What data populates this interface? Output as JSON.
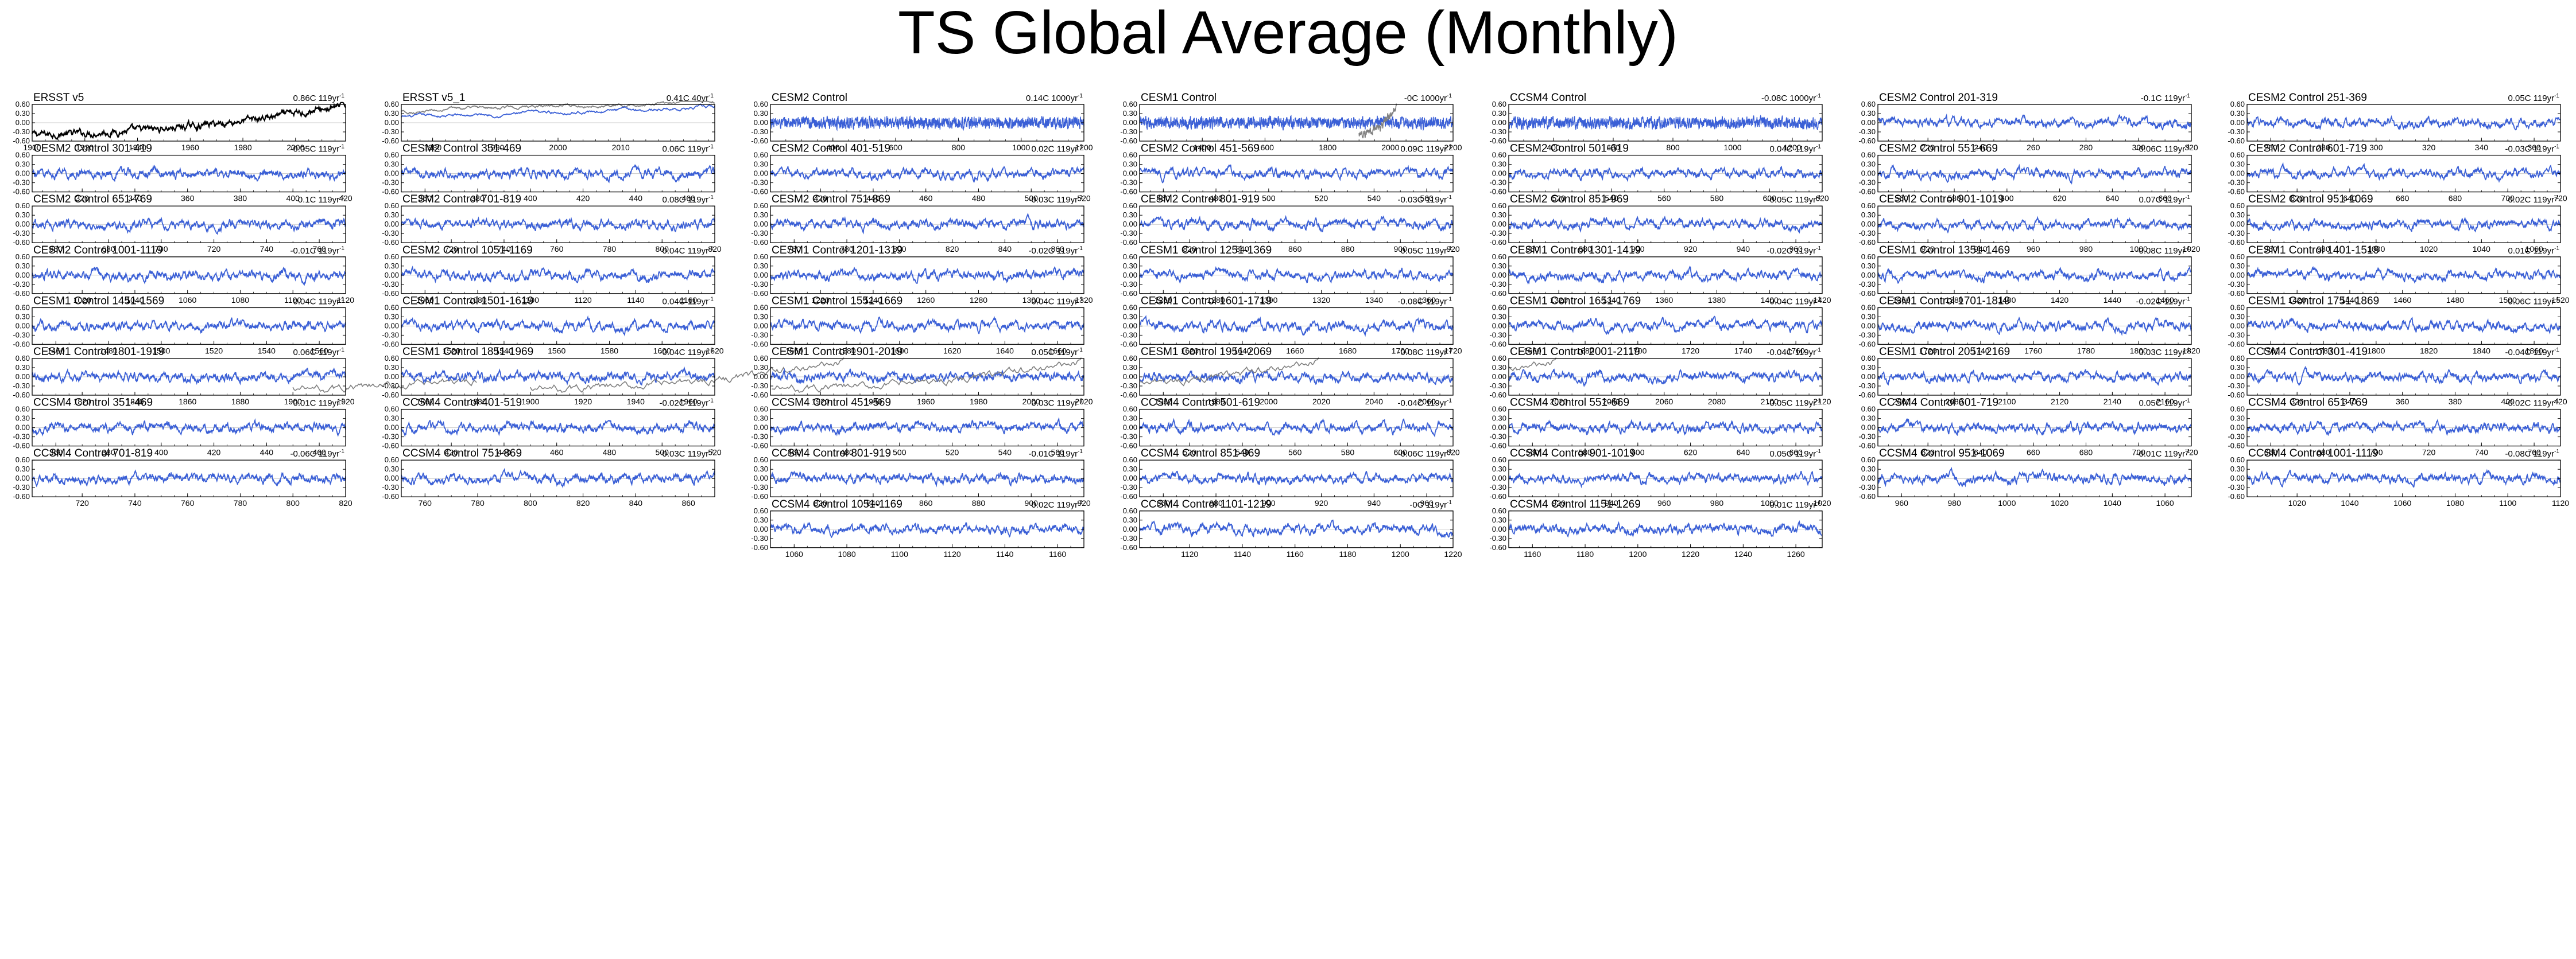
{
  "page": {
    "title": "TS Global Average (Monthly)"
  },
  "colors": {
    "model": "#3a5fd6",
    "obs_black": "#000000",
    "obs_gray": "#808080",
    "axis": "#000000"
  },
  "y_axis": {
    "ylim": [
      -0.6,
      0.6
    ],
    "tick_labels": [
      "0.60",
      "0.30",
      "0.00",
      "-0.30",
      "-0.60"
    ],
    "tick_values": [
      0.6,
      0.3,
      0.0,
      -0.3,
      -0.6
    ]
  },
  "chart_data": [
    {
      "type": "line",
      "title": "ERSST v5",
      "trend": "0.86C 119yr",
      "trend_unit": "-1",
      "xlim": [
        1900,
        2019
      ],
      "xticks": [
        1900,
        1920,
        1940,
        1960,
        1980,
        2000
      ],
      "style": "obs_black"
    },
    {
      "type": "line",
      "title": "ERSST v5_1",
      "trend": "0.41C 40yr",
      "trend_unit": "-1",
      "xlim": [
        1975,
        2025
      ],
      "xticks": [
        1980,
        1990,
        2000,
        2010
      ],
      "style": "obs_dual"
    },
    {
      "type": "line",
      "title": "CESM2 Control",
      "trend": "0.14C 1000yr",
      "trend_unit": "-1",
      "xlim": [
        201,
        1200
      ],
      "xticks": [
        400,
        600,
        800,
        1000,
        1200
      ],
      "style": "model_dense"
    },
    {
      "type": "line",
      "title": "CESM1 Control",
      "trend": "-0C 1000yr",
      "trend_unit": "-1",
      "xlim": [
        1200,
        2200
      ],
      "xticks": [
        1400,
        1600,
        1800,
        2000,
        2200
      ],
      "style": "model_dense_overlay",
      "overlay_from": 1900,
      "overlay_to": 2019
    },
    {
      "type": "line",
      "title": "CCSM4 Control",
      "trend": "-0.08C 1000yr",
      "trend_unit": "-1",
      "xlim": [
        250,
        1300
      ],
      "xticks": [
        400,
        600,
        800,
        1000,
        1200
      ],
      "style": "model_dense"
    },
    {
      "type": "line",
      "title": "CESM2 Control 201-319",
      "trend": "-0.1C 119yr",
      "trend_unit": "-1",
      "xlim": [
        201,
        320
      ],
      "xticks": [
        220,
        240,
        260,
        280,
        300,
        320
      ],
      "style": "model"
    },
    {
      "type": "line",
      "title": "CESM2 Control 251-369",
      "trend": "0.05C 119yr",
      "trend_unit": "-1",
      "xlim": [
        251,
        370
      ],
      "xticks": [
        260,
        280,
        300,
        320,
        340,
        360
      ],
      "style": "model"
    },
    {
      "type": "line",
      "title": "CESM2 Control 301-419",
      "trend": "-0.05C 119yr",
      "trend_unit": "-1",
      "xlim": [
        301,
        420
      ],
      "xticks": [
        320,
        340,
        360,
        380,
        400,
        420
      ],
      "style": "model"
    },
    {
      "type": "line",
      "title": "CESM2 Control 351-469",
      "trend": "0.06C 119yr",
      "trend_unit": "-1",
      "xlim": [
        351,
        470
      ],
      "xticks": [
        360,
        380,
        400,
        420,
        440,
        460
      ],
      "style": "model"
    },
    {
      "type": "line",
      "title": "CESM2 Control 401-519",
      "trend": "0.02C 119yr",
      "trend_unit": "-1",
      "xlim": [
        401,
        520
      ],
      "xticks": [
        420,
        440,
        460,
        480,
        500,
        520
      ],
      "style": "model"
    },
    {
      "type": "line",
      "title": "CESM2 Control 451-569",
      "trend": "0.09C 119yr",
      "trend_unit": "-1",
      "xlim": [
        451,
        570
      ],
      "xticks": [
        460,
        480,
        500,
        520,
        540,
        560
      ],
      "style": "model"
    },
    {
      "type": "line",
      "title": "CESM2 Control 501-619",
      "trend": "0.04C 119yr",
      "trend_unit": "-1",
      "xlim": [
        501,
        620
      ],
      "xticks": [
        520,
        540,
        560,
        580,
        600,
        620
      ],
      "style": "model"
    },
    {
      "type": "line",
      "title": "CESM2 Control 551-669",
      "trend": "-0.06C 119yr",
      "trend_unit": "-1",
      "xlim": [
        551,
        670
      ],
      "xticks": [
        560,
        580,
        600,
        620,
        640,
        660
      ],
      "style": "model"
    },
    {
      "type": "line",
      "title": "CESM2 Control 601-719",
      "trend": "-0.03C 119yr",
      "trend_unit": "-1",
      "xlim": [
        601,
        720
      ],
      "xticks": [
        620,
        640,
        660,
        680,
        700,
        720
      ],
      "style": "model"
    },
    {
      "type": "line",
      "title": "CESM2 Control 651-769",
      "trend": "0.1C 119yr",
      "trend_unit": "-1",
      "xlim": [
        651,
        770
      ],
      "xticks": [
        660,
        680,
        700,
        720,
        740,
        760
      ],
      "style": "model"
    },
    {
      "type": "line",
      "title": "CESM2 Control 701-819",
      "trend": "0.08C 119yr",
      "trend_unit": "-1",
      "xlim": [
        701,
        820
      ],
      "xticks": [
        720,
        740,
        760,
        780,
        800,
        820
      ],
      "style": "model"
    },
    {
      "type": "line",
      "title": "CESM2 Control 751-869",
      "trend": "-0.03C 119yr",
      "trend_unit": "-1",
      "xlim": [
        751,
        870
      ],
      "xticks": [
        760,
        780,
        800,
        820,
        840,
        860
      ],
      "style": "model"
    },
    {
      "type": "line",
      "title": "CESM2 Control 801-919",
      "trend": "-0.03C 119yr",
      "trend_unit": "-1",
      "xlim": [
        801,
        920
      ],
      "xticks": [
        820,
        840,
        860,
        880,
        900,
        920
      ],
      "style": "model"
    },
    {
      "type": "line",
      "title": "CESM2 Control 851-969",
      "trend": "-0.05C 119yr",
      "trend_unit": "-1",
      "xlim": [
        851,
        970
      ],
      "xticks": [
        860,
        880,
        900,
        920,
        940,
        960
      ],
      "style": "model"
    },
    {
      "type": "line",
      "title": "CESM2 Control 901-1019",
      "trend": "0.07C 119yr",
      "trend_unit": "-1",
      "xlim": [
        901,
        1020
      ],
      "xticks": [
        920,
        940,
        960,
        980,
        1000,
        1020
      ],
      "style": "model"
    },
    {
      "type": "line",
      "title": "CESM2 Control 951-1069",
      "trend": "0.02C 119yr",
      "trend_unit": "-1",
      "xlim": [
        951,
        1070
      ],
      "xticks": [
        960,
        980,
        1000,
        1020,
        1040,
        1060
      ],
      "style": "model"
    },
    {
      "type": "line",
      "title": "CESM2 Control 1001-1119",
      "trend": "-0.01C 119yr",
      "trend_unit": "-1",
      "xlim": [
        1001,
        1120
      ],
      "xticks": [
        1020,
        1040,
        1060,
        1080,
        1100,
        1120
      ],
      "style": "model"
    },
    {
      "type": "line",
      "title": "CESM2 Control 1051-1169",
      "trend": "0.04C 119yr",
      "trend_unit": "-1",
      "xlim": [
        1051,
        1170
      ],
      "xticks": [
        1060,
        1080,
        1100,
        1120,
        1140,
        1160
      ],
      "style": "model"
    },
    {
      "type": "line",
      "title": "CESM1 Control 1201-1319",
      "trend": "-0.02C 119yr",
      "trend_unit": "-1",
      "xlim": [
        1201,
        1320
      ],
      "xticks": [
        1220,
        1240,
        1260,
        1280,
        1300,
        1320
      ],
      "style": "model"
    },
    {
      "type": "line",
      "title": "CESM1 Control 1251-1369",
      "trend": "0.05C 119yr",
      "trend_unit": "-1",
      "xlim": [
        1251,
        1370
      ],
      "xticks": [
        1260,
        1280,
        1300,
        1320,
        1340,
        1360
      ],
      "style": "model"
    },
    {
      "type": "line",
      "title": "CESM1 Control 1301-1419",
      "trend": "-0.02C 119yr",
      "trend_unit": "-1",
      "xlim": [
        1301,
        1420
      ],
      "xticks": [
        1320,
        1340,
        1360,
        1380,
        1400,
        1420
      ],
      "style": "model"
    },
    {
      "type": "line",
      "title": "CESM1 Control 1351-1469",
      "trend": "-0.08C 119yr",
      "trend_unit": "-1",
      "xlim": [
        1351,
        1470
      ],
      "xticks": [
        1360,
        1380,
        1400,
        1420,
        1440,
        1460
      ],
      "style": "model"
    },
    {
      "type": "line",
      "title": "CESM1 Control 1401-1519",
      "trend": "0.01C 119yr",
      "trend_unit": "-1",
      "xlim": [
        1401,
        1520
      ],
      "xticks": [
        1420,
        1440,
        1460,
        1480,
        1500,
        1520
      ],
      "style": "model"
    },
    {
      "type": "line",
      "title": "CESM1 Control 1451-1569",
      "trend": "0.04C 119yr",
      "trend_unit": "-1",
      "xlim": [
        1451,
        1570
      ],
      "xticks": [
        1460,
        1480,
        1500,
        1520,
        1540,
        1560
      ],
      "style": "model"
    },
    {
      "type": "line",
      "title": "CESM1 Control 1501-1619",
      "trend": "0.04C 119yr",
      "trend_unit": "-1",
      "xlim": [
        1501,
        1620
      ],
      "xticks": [
        1520,
        1540,
        1560,
        1580,
        1600,
        1620
      ],
      "style": "model"
    },
    {
      "type": "line",
      "title": "CESM1 Control 1551-1669",
      "trend": "0.04C 119yr",
      "trend_unit": "-1",
      "xlim": [
        1551,
        1670
      ],
      "xticks": [
        1560,
        1580,
        1600,
        1620,
        1640,
        1660
      ],
      "style": "model"
    },
    {
      "type": "line",
      "title": "CESM1 Control 1601-1719",
      "trend": "-0.08C 119yr",
      "trend_unit": "-1",
      "xlim": [
        1601,
        1720
      ],
      "xticks": [
        1620,
        1640,
        1660,
        1680,
        1700,
        1720
      ],
      "style": "model"
    },
    {
      "type": "line",
      "title": "CESM1 Control 1651-1769",
      "trend": "-0.04C 119yr",
      "trend_unit": "-1",
      "xlim": [
        1651,
        1770
      ],
      "xticks": [
        1660,
        1680,
        1700,
        1720,
        1740,
        1760
      ],
      "style": "model"
    },
    {
      "type": "line",
      "title": "CESM1 Control 1701-1819",
      "trend": "-0.02C 119yr",
      "trend_unit": "-1",
      "xlim": [
        1701,
        1820
      ],
      "xticks": [
        1720,
        1740,
        1760,
        1780,
        1800,
        1820
      ],
      "style": "model"
    },
    {
      "type": "line",
      "title": "CESM1 Control 1751-1869",
      "trend": "0.06C 119yr",
      "trend_unit": "-1",
      "xlim": [
        1751,
        1870
      ],
      "xticks": [
        1760,
        1780,
        1800,
        1820,
        1840,
        1860
      ],
      "style": "model"
    },
    {
      "type": "line",
      "title": "CESM1 Control 1801-1919",
      "trend": "0.06C 119yr",
      "trend_unit": "-1",
      "xlim": [
        1801,
        1920
      ],
      "xticks": [
        1820,
        1840,
        1860,
        1880,
        1900,
        1920
      ],
      "style": "model_overlay",
      "overlay_from": 1900,
      "overlay_to": 2019
    },
    {
      "type": "line",
      "title": "CESM1 Control 1851-1969",
      "trend": "-0.04C 119yr",
      "trend_unit": "-1",
      "xlim": [
        1851,
        1970
      ],
      "xticks": [
        1860,
        1880,
        1900,
        1920,
        1940,
        1960
      ],
      "style": "model_overlay",
      "overlay_from": 1900,
      "overlay_to": 2019
    },
    {
      "type": "line",
      "title": "CESM1 Control 1901-2019",
      "trend": "0.05C 119yr",
      "trend_unit": "-1",
      "xlim": [
        1901,
        2020
      ],
      "xticks": [
        1920,
        1940,
        1960,
        1980,
        2000,
        2020
      ],
      "style": "model_overlay",
      "overlay_from": 1900,
      "overlay_to": 2019
    },
    {
      "type": "line",
      "title": "CESM1 Control 1951-2069",
      "trend": "-0.08C 119yr",
      "trend_unit": "-1",
      "xlim": [
        1951,
        2070
      ],
      "xticks": [
        1960,
        1980,
        2000,
        2020,
        2040,
        2060
      ],
      "style": "model_overlay",
      "overlay_from": 1900,
      "overlay_to": 2019
    },
    {
      "type": "line",
      "title": "CESM1 Control 2001-2119",
      "trend": "-0.04C 119yr",
      "trend_unit": "-1",
      "xlim": [
        2001,
        2120
      ],
      "xticks": [
        2020,
        2040,
        2060,
        2080,
        2100,
        2120
      ],
      "style": "model_overlay",
      "overlay_from": 1900,
      "overlay_to": 2019
    },
    {
      "type": "line",
      "title": "CESM1 Control 2051-2169",
      "trend": "0.03C 119yr",
      "trend_unit": "-1",
      "xlim": [
        2051,
        2170
      ],
      "xticks": [
        2060,
        2080,
        2100,
        2120,
        2140,
        2160
      ],
      "style": "model"
    },
    {
      "type": "line",
      "title": "CCSM4 Control 301-419",
      "trend": "-0.04C 119yr",
      "trend_unit": "-1",
      "xlim": [
        301,
        420
      ],
      "xticks": [
        320,
        340,
        360,
        380,
        400,
        420
      ],
      "style": "model"
    },
    {
      "type": "line",
      "title": "CCSM4 Control 351-469",
      "trend": "0.01C 119yr",
      "trend_unit": "-1",
      "xlim": [
        351,
        470
      ],
      "xticks": [
        360,
        380,
        400,
        420,
        440,
        460
      ],
      "style": "model"
    },
    {
      "type": "line",
      "title": "CCSM4 Control 401-519",
      "trend": "-0.02C 119yr",
      "trend_unit": "-1",
      "xlim": [
        401,
        520
      ],
      "xticks": [
        420,
        440,
        460,
        480,
        500,
        520
      ],
      "style": "model"
    },
    {
      "type": "line",
      "title": "CCSM4 Control 451-569",
      "trend": "0.03C 119yr",
      "trend_unit": "-1",
      "xlim": [
        451,
        570
      ],
      "xticks": [
        460,
        480,
        500,
        520,
        540,
        560
      ],
      "style": "model"
    },
    {
      "type": "line",
      "title": "CCSM4 Control 501-619",
      "trend": "-0.04C 119yr",
      "trend_unit": "-1",
      "xlim": [
        501,
        620
      ],
      "xticks": [
        520,
        540,
        560,
        580,
        600,
        620
      ],
      "style": "model"
    },
    {
      "type": "line",
      "title": "CCSM4 Control 551-669",
      "trend": "-0.05C 119yr",
      "trend_unit": "-1",
      "xlim": [
        551,
        670
      ],
      "xticks": [
        560,
        580,
        600,
        620,
        640,
        660
      ],
      "style": "model"
    },
    {
      "type": "line",
      "title": "CCSM4 Control 601-719",
      "trend": "0.05C 119yr",
      "trend_unit": "-1",
      "xlim": [
        601,
        720
      ],
      "xticks": [
        620,
        640,
        660,
        680,
        700,
        720
      ],
      "style": "model"
    },
    {
      "type": "line",
      "title": "CCSM4 Control 651-769",
      "trend": "-0.02C 119yr",
      "trend_unit": "-1",
      "xlim": [
        651,
        770
      ],
      "xticks": [
        660,
        680,
        700,
        720,
        740,
        760
      ],
      "style": "model"
    },
    {
      "type": "line",
      "title": "CCSM4 Control 701-819",
      "trend": "-0.06C 119yr",
      "trend_unit": "-1",
      "xlim": [
        701,
        820
      ],
      "xticks": [
        720,
        740,
        760,
        780,
        800,
        820
      ],
      "style": "model"
    },
    {
      "type": "line",
      "title": "CCSM4 Control 751-869",
      "trend": "0.03C 119yr",
      "trend_unit": "-1",
      "xlim": [
        751,
        870
      ],
      "xticks": [
        760,
        780,
        800,
        820,
        840,
        860
      ],
      "style": "model"
    },
    {
      "type": "line",
      "title": "CCSM4 Control 801-919",
      "trend": "-0.01C 119yr",
      "trend_unit": "-1",
      "xlim": [
        801,
        920
      ],
      "xticks": [
        820,
        840,
        860,
        880,
        900,
        920
      ],
      "style": "model"
    },
    {
      "type": "line",
      "title": "CCSM4 Control 851-969",
      "trend": "-0.06C 119yr",
      "trend_unit": "-1",
      "xlim": [
        851,
        970
      ],
      "xticks": [
        860,
        880,
        900,
        920,
        940,
        960
      ],
      "style": "model"
    },
    {
      "type": "line",
      "title": "CCSM4 Control 901-1019",
      "trend": "0.05C 119yr",
      "trend_unit": "-1",
      "xlim": [
        901,
        1020
      ],
      "xticks": [
        920,
        940,
        960,
        980,
        1000,
        1020
      ],
      "style": "model"
    },
    {
      "type": "line",
      "title": "CCSM4 Control 951-1069",
      "trend": "-0.01C 119yr",
      "trend_unit": "-1",
      "xlim": [
        951,
        1070
      ],
      "xticks": [
        960,
        980,
        1000,
        1020,
        1040,
        1060
      ],
      "style": "model"
    },
    {
      "type": "line",
      "title": "CCSM4 Control 1001-1119",
      "trend": "-0.08C 119yr",
      "trend_unit": "-1",
      "xlim": [
        1001,
        1120
      ],
      "xticks": [
        1020,
        1040,
        1060,
        1080,
        1100,
        1120
      ],
      "style": "model"
    },
    {
      "type": "line",
      "title": "CCSM4 Control 1051-1169",
      "trend": "0.02C 119yr",
      "trend_unit": "-1",
      "xlim": [
        1051,
        1170
      ],
      "xticks": [
        1060,
        1080,
        1100,
        1120,
        1140,
        1160
      ],
      "style": "model"
    },
    {
      "type": "line",
      "title": "CCSM4 Control 1101-1219",
      "trend": "-0C 119yr",
      "trend_unit": "-1",
      "xlim": [
        1101,
        1220
      ],
      "xticks": [
        1120,
        1140,
        1160,
        1180,
        1200,
        1220
      ],
      "style": "model"
    },
    {
      "type": "line",
      "title": "CCSM4 Control 1151-1269",
      "trend": "-0.01C 119yr",
      "trend_unit": "-1",
      "xlim": [
        1151,
        1270
      ],
      "xticks": [
        1160,
        1180,
        1200,
        1220,
        1240,
        1260
      ],
      "style": "model"
    }
  ]
}
